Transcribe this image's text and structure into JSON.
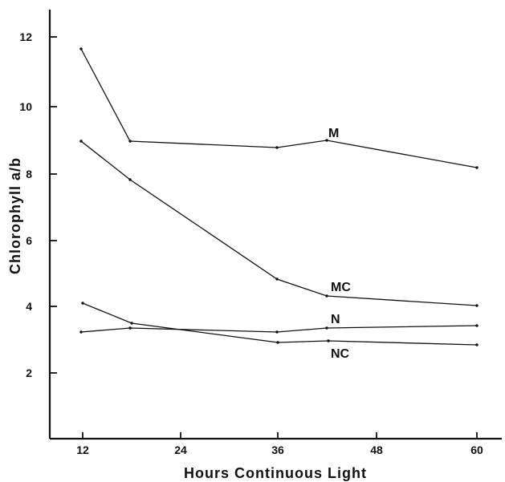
{
  "chart_data": {
    "type": "line",
    "title": "",
    "xlabel": "Hours Continuous Light",
    "ylabel": "Chlorophyll a/b",
    "xlim": [
      7,
      64
    ],
    "ylim": [
      0,
      12.9
    ],
    "xticks": [
      12,
      24,
      36,
      48,
      60
    ],
    "yticks": [
      2,
      4,
      6,
      8,
      10,
      12
    ],
    "x_tick_labels": [
      "12",
      "24",
      "36",
      "48",
      "60"
    ],
    "y_tick_labels": [
      "2",
      "4",
      "6",
      "8",
      "10",
      "12"
    ],
    "grid": false,
    "legend": "none",
    "series": [
      {
        "name": "M",
        "x": [
          12,
          18,
          36,
          42,
          60
        ],
        "y": [
          11.7,
          8.95,
          8.75,
          9.0,
          8.2
        ]
      },
      {
        "name": "MC",
        "x": [
          12,
          18,
          36,
          42,
          60
        ],
        "y": [
          8.95,
          7.8,
          4.85,
          4.35,
          4.05
        ]
      },
      {
        "name": "N",
        "x": [
          12,
          18,
          36,
          42,
          60
        ],
        "y": [
          3.25,
          3.4,
          3.25,
          3.35,
          3.45
        ]
      },
      {
        "name": "NC",
        "x": [
          12,
          18,
          36,
          42,
          60
        ],
        "y": [
          4.1,
          3.5,
          2.95,
          3.0,
          2.85
        ]
      }
    ]
  }
}
